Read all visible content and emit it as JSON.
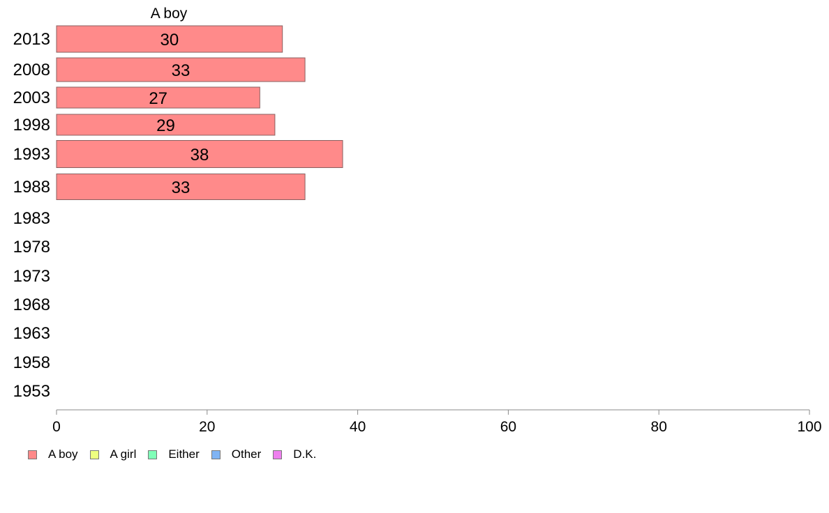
{
  "chart_data": {
    "type": "bar",
    "orientation": "horizontal",
    "title": "A boy",
    "categories": [
      "2013",
      "2008",
      "2003",
      "1998",
      "1993",
      "1988",
      "1983",
      "1978",
      "1973",
      "1968",
      "1963",
      "1958",
      "1953"
    ],
    "series": [
      {
        "name": "A boy",
        "color": "#ff8a8a",
        "values": [
          30,
          33,
          27,
          29,
          38,
          33,
          null,
          null,
          null,
          null,
          null,
          null,
          null
        ]
      }
    ],
    "value_labels": [
      "30",
      "33",
      "27",
      "29",
      "38",
      "33"
    ],
    "xlim": [
      0,
      100
    ],
    "xticks": [
      "0",
      "20",
      "40",
      "60",
      "80",
      "100"
    ],
    "grid": false,
    "legend_position": "bottom-left"
  },
  "legend": [
    {
      "label": "A boy",
      "color": "#ff8a8a"
    },
    {
      "label": "A girl",
      "color": "#eeff80"
    },
    {
      "label": "Either",
      "color": "#80ffb8"
    },
    {
      "label": "Other",
      "color": "#80b4f4"
    },
    {
      "label": "D.K.",
      "color": "#ee80ee"
    }
  ]
}
